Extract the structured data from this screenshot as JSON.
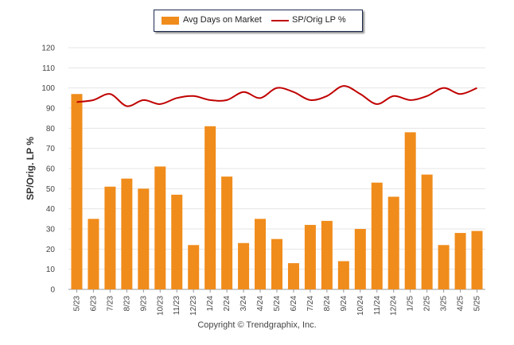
{
  "legend": {
    "bar_label": "Avg Days on Market",
    "line_label": "SP/Orig LP %",
    "bar_color": "#f08c1b",
    "line_color": "#c00000"
  },
  "y_axis_title": "SP/Orig. LP %",
  "footer": "Copyright © Trendgraphix, Inc.",
  "chart_data": {
    "type": "bar",
    "categories": [
      "5/23",
      "6/23",
      "7/23",
      "8/23",
      "9/23",
      "10/23",
      "11/23",
      "12/23",
      "1/24",
      "2/24",
      "3/24",
      "4/24",
      "5/24",
      "6/24",
      "7/24",
      "8/24",
      "9/24",
      "10/24",
      "11/24",
      "12/24",
      "1/25",
      "2/25",
      "3/25",
      "4/25",
      "5/25"
    ],
    "series": [
      {
        "name": "Avg Days on Market",
        "type": "bar",
        "values": [
          97,
          35,
          51,
          55,
          50,
          61,
          47,
          22,
          81,
          56,
          23,
          35,
          25,
          13,
          32,
          34,
          14,
          30,
          53,
          46,
          78,
          57,
          22,
          28,
          29
        ]
      },
      {
        "name": "SP/Orig LP %",
        "type": "line",
        "values": [
          93,
          94,
          97,
          91,
          94,
          92,
          95,
          96,
          94,
          94,
          98,
          95,
          100,
          98,
          94,
          96,
          101,
          97,
          92,
          96,
          94,
          96,
          100,
          97,
          100
        ]
      }
    ],
    "ylabel": "SP/Orig. LP %",
    "ylim": [
      0,
      120
    ],
    "yticks": [
      0,
      10,
      20,
      30,
      40,
      50,
      60,
      70,
      80,
      90,
      100,
      110,
      120
    ],
    "grid": true,
    "legend_position": "top"
  }
}
